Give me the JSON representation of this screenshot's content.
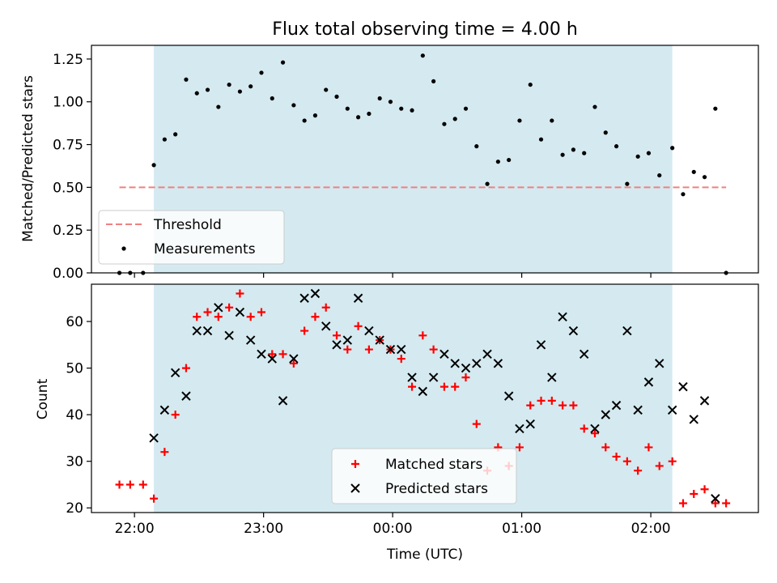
{
  "chart_data": [
    {
      "type": "scatter",
      "title": "Flux total observing time = 4.00 h",
      "xlabel": "",
      "ylabel": "Matched/Predicted stars",
      "x_unit": "minutes since 22:00 UTC",
      "xlim": [
        -20,
        290
      ],
      "ylim": [
        0.0,
        1.33
      ],
      "yticks": [
        0.0,
        0.25,
        0.5,
        0.75,
        1.0,
        1.25
      ],
      "ytick_labels": [
        "0.00",
        "0.25",
        "0.50",
        "0.75",
        "1.00",
        "1.25"
      ],
      "shaded_span": [
        9,
        250
      ],
      "shaded_color": "#d4eaf0",
      "legend_position": "lower left",
      "threshold": {
        "name": "Threshold",
        "y": 0.5,
        "x_range": [
          -7,
          275
        ],
        "color": "#f08080"
      },
      "series": [
        {
          "name": "Measurements",
          "marker": "dot",
          "color": "#000000",
          "x": [
            -7,
            -2,
            4,
            9,
            14,
            19,
            24,
            29,
            34,
            39,
            44,
            49,
            54,
            59,
            64,
            69,
            74,
            79,
            84,
            89,
            94,
            99,
            104,
            109,
            114,
            119,
            124,
            129,
            134,
            139,
            144,
            149,
            154,
            159,
            164,
            169,
            174,
            179,
            184,
            189,
            194,
            199,
            204,
            209,
            214,
            219,
            224,
            229,
            234,
            239,
            244,
            250,
            255,
            260,
            265,
            270,
            275
          ],
          "y": [
            0.0,
            0.0,
            0.0,
            0.63,
            0.78,
            0.81,
            1.13,
            1.05,
            1.07,
            0.97,
            1.1,
            1.06,
            1.09,
            1.17,
            1.02,
            1.23,
            0.98,
            0.89,
            0.92,
            1.07,
            1.03,
            0.96,
            0.91,
            0.93,
            1.02,
            1.0,
            0.96,
            0.95,
            1.27,
            1.12,
            0.87,
            0.9,
            0.96,
            0.74,
            0.52,
            0.65,
            0.66,
            0.89,
            1.1,
            0.78,
            0.89,
            0.69,
            0.72,
            0.7,
            0.97,
            0.82,
            0.74,
            0.52,
            0.68,
            0.7,
            0.57,
            0.73,
            0.46,
            0.59,
            0.56,
            0.96,
            0.0
          ]
        }
      ]
    },
    {
      "type": "scatter",
      "title": "",
      "xlabel": "Time (UTC)",
      "ylabel": "Count",
      "x_unit": "minutes since 22:00 UTC",
      "xlim": [
        -20,
        290
      ],
      "ylim": [
        19,
        68
      ],
      "yticks": [
        20,
        30,
        40,
        50,
        60
      ],
      "ytick_labels": [
        "20",
        "30",
        "40",
        "50",
        "60"
      ],
      "xticks": [
        0,
        60,
        120,
        180,
        240
      ],
      "xtick_labels": [
        "22:00",
        "23:00",
        "00:00",
        "01:00",
        "02:00"
      ],
      "shaded_span": [
        9,
        250
      ],
      "shaded_color": "#d4eaf0",
      "legend_position": "lower center",
      "series": [
        {
          "name": "Matched stars",
          "marker": "plus",
          "color": "#ff0000",
          "x": [
            -7,
            -2,
            4,
            9,
            14,
            19,
            24,
            29,
            34,
            39,
            44,
            49,
            54,
            59,
            64,
            69,
            74,
            79,
            84,
            89,
            94,
            99,
            104,
            109,
            114,
            119,
            124,
            129,
            134,
            139,
            144,
            149,
            154,
            159,
            164,
            169,
            174,
            179,
            184,
            189,
            194,
            199,
            204,
            209,
            214,
            219,
            224,
            229,
            234,
            239,
            244,
            250,
            255,
            260,
            265,
            270,
            275
          ],
          "y": [
            25,
            25,
            25,
            22,
            32,
            40,
            50,
            61,
            62,
            61,
            63,
            66,
            61,
            62,
            53,
            53,
            51,
            58,
            61,
            63,
            57,
            54,
            59,
            54,
            56,
            54,
            52,
            46,
            57,
            54,
            46,
            46,
            48,
            38,
            28,
            33,
            29,
            33,
            42,
            43,
            43,
            42,
            42,
            37,
            36,
            33,
            31,
            30,
            28,
            33,
            29,
            30,
            21,
            23,
            24,
            21,
            21
          ]
        },
        {
          "name": "Predicted stars",
          "marker": "x",
          "color": "#000000",
          "x": [
            9,
            14,
            19,
            24,
            29,
            34,
            39,
            44,
            49,
            54,
            59,
            64,
            69,
            74,
            79,
            84,
            89,
            94,
            99,
            104,
            109,
            114,
            119,
            124,
            129,
            134,
            139,
            144,
            149,
            154,
            159,
            164,
            169,
            174,
            179,
            184,
            189,
            194,
            199,
            204,
            209,
            214,
            219,
            224,
            229,
            234,
            239,
            244,
            250,
            255,
            260,
            265,
            270
          ],
          "y": [
            35,
            41,
            49,
            44,
            58,
            58,
            63,
            57,
            62,
            56,
            53,
            52,
            43,
            52,
            65,
            66,
            59,
            55,
            56,
            65,
            58,
            56,
            54,
            54,
            48,
            45,
            48,
            53,
            51,
            50,
            51,
            53,
            51,
            44,
            37,
            38,
            55,
            48,
            61,
            58,
            53,
            37,
            40,
            42,
            58,
            41,
            47,
            51,
            41,
            46,
            39,
            43,
            22
          ]
        }
      ]
    }
  ]
}
